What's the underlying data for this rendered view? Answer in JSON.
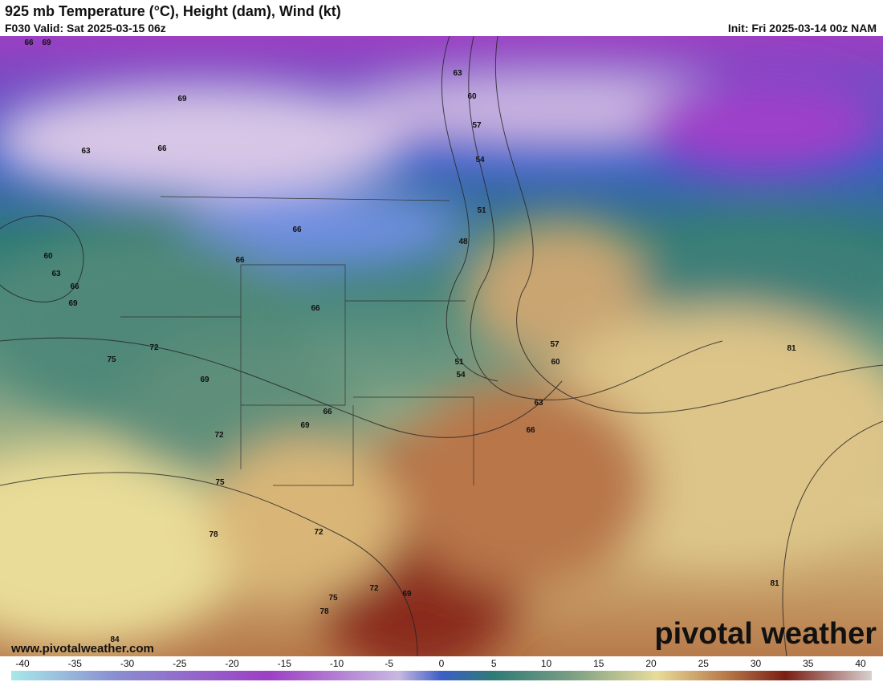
{
  "header": {
    "title": "925 mb Temperature (°C), Height (dam), Wind (kt)",
    "valid": "F030 Valid: Sat 2025-03-15 06z",
    "init": "Init: Fri 2025-03-14 00z NAM"
  },
  "map": {
    "contour_labels": [
      "66",
      "69",
      "69",
      "63",
      "66",
      "63",
      "60",
      "57",
      "54",
      "51",
      "48",
      "66",
      "60",
      "63",
      "66",
      "69",
      "66",
      "66",
      "75",
      "72",
      "69",
      "66",
      "69",
      "72",
      "75",
      "78",
      "72",
      "75",
      "78",
      "72",
      "69",
      "84",
      "51",
      "54",
      "57",
      "60",
      "63",
      "66",
      "81",
      "81"
    ]
  },
  "watermark": {
    "site": "www.pivotalweather.com",
    "brand": "pivotal weather"
  },
  "colorbar": {
    "ticks": [
      -40,
      -35,
      -30,
      -25,
      -20,
      -15,
      -10,
      -5,
      0,
      5,
      10,
      15,
      20,
      25,
      30,
      35,
      40
    ]
  }
}
